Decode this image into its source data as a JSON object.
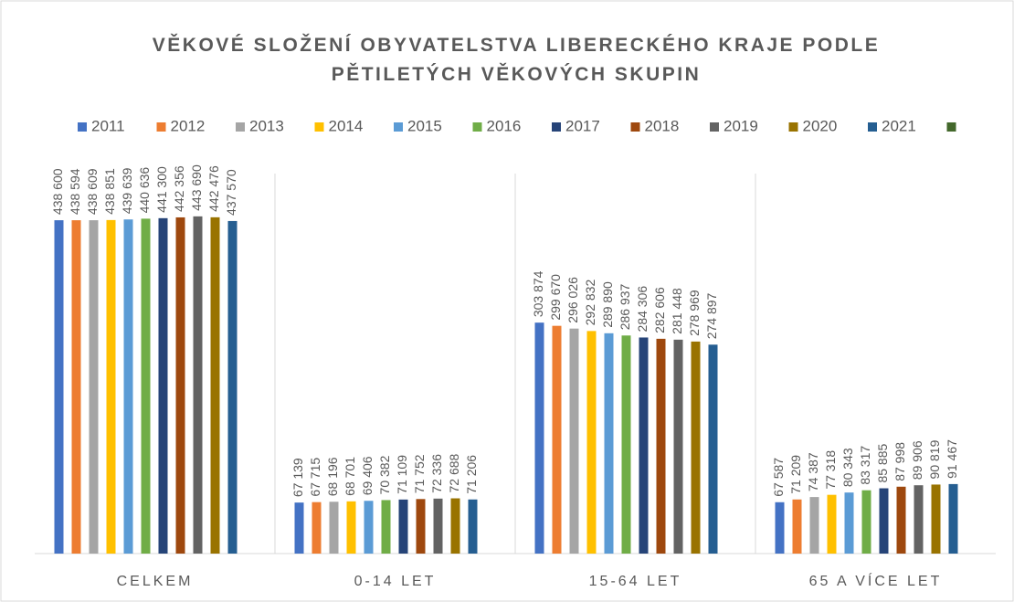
{
  "chart_data": {
    "type": "bar",
    "title": [
      "VĚKOVÉ SLOŽENÍ OBYVATELSTVA LIBERECKÉHO KRAJE PODLE",
      "PĚTILETÝCH VĚKOVÝCH SKUPIN"
    ],
    "categories": [
      "CELKEM",
      "0-14 LET",
      "15-64 LET",
      "65 A VÍCE LET"
    ],
    "ylim": [
      0,
      500000
    ],
    "legend": "top",
    "series": [
      {
        "name": "2011",
        "color": "#4472c4",
        "values": [
          438600,
          67139,
          303874,
          67587
        ],
        "value_labels": [
          "438 600",
          "67 139",
          "303 874",
          "67 587"
        ]
      },
      {
        "name": "2012",
        "color": "#ed7d31",
        "values": [
          438594,
          67715,
          299670,
          71209
        ],
        "value_labels": [
          "438 594",
          "67 715",
          "299 670",
          "71 209"
        ]
      },
      {
        "name": "2013",
        "color": "#a5a5a5",
        "values": [
          438609,
          68196,
          296026,
          74387
        ],
        "value_labels": [
          "438 609",
          "68 196",
          "296 026",
          "74 387"
        ]
      },
      {
        "name": "2014",
        "color": "#ffc000",
        "values": [
          438851,
          68701,
          292832,
          77318
        ],
        "value_labels": [
          "438 851",
          "68 701",
          "292 832",
          "77 318"
        ]
      },
      {
        "name": "2015",
        "color": "#5b9bd5",
        "values": [
          439639,
          69406,
          289890,
          80343
        ],
        "value_labels": [
          "439 639",
          "69 406",
          "289 890",
          "80 343"
        ]
      },
      {
        "name": "2016",
        "color": "#70ad47",
        "values": [
          440636,
          70382,
          286937,
          83317
        ],
        "value_labels": [
          "440 636",
          "70 382",
          "286 937",
          "83 317"
        ]
      },
      {
        "name": "2017",
        "color": "#264478",
        "values": [
          441300,
          71109,
          284306,
          85885
        ],
        "value_labels": [
          "441 300",
          "71 109",
          "284 306",
          "85 885"
        ]
      },
      {
        "name": "2018",
        "color": "#9e480e",
        "values": [
          442356,
          71752,
          282606,
          87998
        ],
        "value_labels": [
          "442 356",
          "71 752",
          "282 606",
          "87 998"
        ]
      },
      {
        "name": "2019",
        "color": "#636363",
        "values": [
          443690,
          72336,
          281448,
          89906
        ],
        "value_labels": [
          "443 690",
          "72 336",
          "281 448",
          "89 906"
        ]
      },
      {
        "name": "2020",
        "color": "#997300",
        "values": [
          442476,
          72688,
          278969,
          90819
        ],
        "value_labels": [
          "442 476",
          "72 688",
          "278 969",
          "90 819"
        ]
      },
      {
        "name": "2021",
        "color": "#255e91",
        "values": [
          437570,
          71206,
          274897,
          91467
        ],
        "value_labels": [
          "437 570",
          "71 206",
          "274 897",
          "91 467"
        ]
      },
      {
        "name": null,
        "color": "#43682b",
        "values": [
          null,
          null,
          null,
          null
        ]
      }
    ]
  }
}
